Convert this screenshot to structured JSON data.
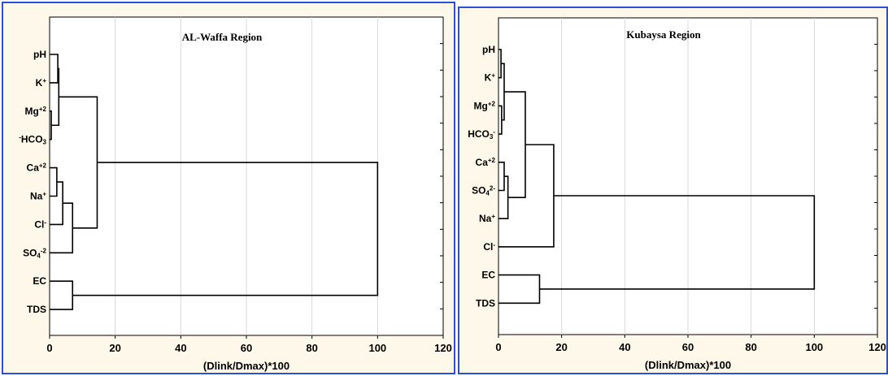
{
  "chart_data": [
    {
      "type": "dendrogram",
      "title": "AL-Waffa Region",
      "xlabel": "(Dlink/Dmax)*100",
      "xlim": [
        0,
        120
      ],
      "xticks": [
        "0",
        "20",
        "40",
        "60",
        "80",
        "100",
        "120"
      ],
      "grid": true,
      "leaves": [
        {
          "id": "pH",
          "parts": [
            {
              "t": "pH"
            }
          ]
        },
        {
          "id": "K",
          "parts": [
            {
              "t": "K"
            },
            {
              "t": "+",
              "s": "sup"
            }
          ]
        },
        {
          "id": "Mg",
          "parts": [
            {
              "t": "Mg"
            },
            {
              "t": "+2",
              "s": "sup"
            }
          ]
        },
        {
          "id": "HCO3",
          "parts": [
            {
              "t": "-",
              "s": "sup"
            },
            {
              "t": "HCO"
            },
            {
              "t": "3",
              "s": "sub"
            }
          ]
        },
        {
          "id": "Ca",
          "parts": [
            {
              "t": "Ca"
            },
            {
              "t": "+2",
              "s": "sup"
            }
          ]
        },
        {
          "id": "Na",
          "parts": [
            {
              "t": "Na"
            },
            {
              "t": "+",
              "s": "sup"
            }
          ]
        },
        {
          "id": "Cl",
          "parts": [
            {
              "t": "Cl"
            },
            {
              "t": "-",
              "s": "sup"
            }
          ]
        },
        {
          "id": "SO4",
          "parts": [
            {
              "t": "SO"
            },
            {
              "t": "4",
              "s": "sub"
            },
            {
              "t": "-2",
              "s": "sup"
            }
          ]
        },
        {
          "id": "EC",
          "parts": [
            {
              "t": "EC"
            }
          ]
        },
        {
          "id": "TDS",
          "parts": [
            {
              "t": "TDS"
            }
          ]
        }
      ],
      "links": [
        {
          "a": "pH",
          "b": "K",
          "h": 2.5
        },
        {
          "a": "Mg",
          "b": "HCO3",
          "h": 0.5
        },
        {
          "a": "L1",
          "b": "L2",
          "h": 2.8
        },
        {
          "a": "Ca",
          "b": "Na",
          "h": 2.2
        },
        {
          "a": "L4",
          "b": "Cl",
          "h": 4.0
        },
        {
          "a": "L5",
          "b": "SO4",
          "h": 7.0
        },
        {
          "a": "L3",
          "b": "L6",
          "h": 14.5
        },
        {
          "a": "EC",
          "b": "TDS",
          "h": 7.0
        },
        {
          "a": "L7",
          "b": "L8",
          "h": 100
        }
      ]
    },
    {
      "type": "dendrogram",
      "title": "Kubaysa Region",
      "xlabel": "(Dlink/Dmax)*100",
      "xlim": [
        0,
        120
      ],
      "xticks": [
        "0",
        "20",
        "40",
        "60",
        "80",
        "100",
        "120"
      ],
      "grid": true,
      "leaves": [
        {
          "id": "pH",
          "parts": [
            {
              "t": "pH"
            }
          ]
        },
        {
          "id": "K",
          "parts": [
            {
              "t": "K"
            },
            {
              "t": "+",
              "s": "sup"
            }
          ]
        },
        {
          "id": "Mg",
          "parts": [
            {
              "t": "Mg"
            },
            {
              "t": "+2",
              "s": "sup"
            }
          ]
        },
        {
          "id": "HCO3",
          "parts": [
            {
              "t": "HCO"
            },
            {
              "t": "3",
              "s": "sub"
            },
            {
              "t": "-",
              "s": "sup"
            }
          ]
        },
        {
          "id": "Ca",
          "parts": [
            {
              "t": "Ca"
            },
            {
              "t": "+2",
              "s": "sup"
            }
          ]
        },
        {
          "id": "SO4",
          "parts": [
            {
              "t": "SO"
            },
            {
              "t": "4",
              "s": "sub"
            },
            {
              "t": "2-",
              "s": "sup"
            }
          ]
        },
        {
          "id": "Na",
          "parts": [
            {
              "t": "Na"
            },
            {
              "t": "+",
              "s": "sup"
            }
          ]
        },
        {
          "id": "Cl",
          "parts": [
            {
              "t": "Cl"
            },
            {
              "t": "-",
              "s": "sup"
            }
          ]
        },
        {
          "id": "EC",
          "parts": [
            {
              "t": "EC"
            }
          ]
        },
        {
          "id": "TDS",
          "parts": [
            {
              "t": "TDS"
            }
          ]
        }
      ],
      "links": [
        {
          "a": "pH",
          "b": "K",
          "h": 0.8
        },
        {
          "a": "Mg",
          "b": "HCO3",
          "h": 1.0
        },
        {
          "a": "L1",
          "b": "L2",
          "h": 1.8
        },
        {
          "a": "Ca",
          "b": "SO4",
          "h": 1.8
        },
        {
          "a": "L4",
          "b": "Na",
          "h": 3.0
        },
        {
          "a": "L3",
          "b": "L5",
          "h": 8.5
        },
        {
          "a": "L6",
          "b": "Cl",
          "h": 17.5
        },
        {
          "a": "EC",
          "b": "TDS",
          "h": 13.0
        },
        {
          "a": "L7",
          "b": "L8",
          "h": 100
        }
      ]
    }
  ]
}
